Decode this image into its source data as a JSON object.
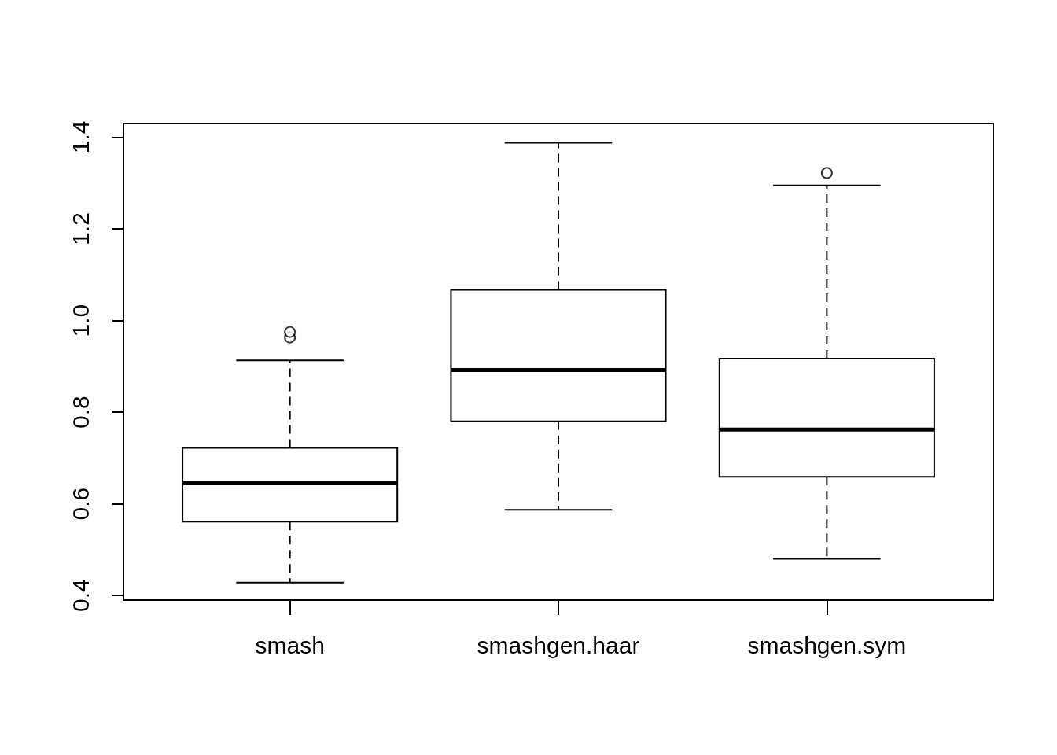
{
  "chart_data": {
    "type": "box",
    "categories": [
      "smash",
      "smashgen.haar",
      "smashgen.sym"
    ],
    "boxes": [
      {
        "low": 0.428,
        "q1": 0.561,
        "median": 0.645,
        "q3": 0.722,
        "high": 0.913,
        "outliers": [
          0.963,
          0.975
        ]
      },
      {
        "low": 0.587,
        "q1": 0.78,
        "median": 0.892,
        "q3": 1.067,
        "high": 1.388
      },
      {
        "low": 0.48,
        "q1": 0.659,
        "median": 0.762,
        "q3": 0.917,
        "high": 1.295,
        "outliers": [
          1.322
        ]
      }
    ],
    "color": "#000000",
    "ylim": [
      0.39,
      1.43
    ],
    "yticks": [
      0.4,
      0.6,
      0.8,
      {
        "value": 1,
        "label": "1.0"
      },
      1.2,
      1.4
    ]
  }
}
